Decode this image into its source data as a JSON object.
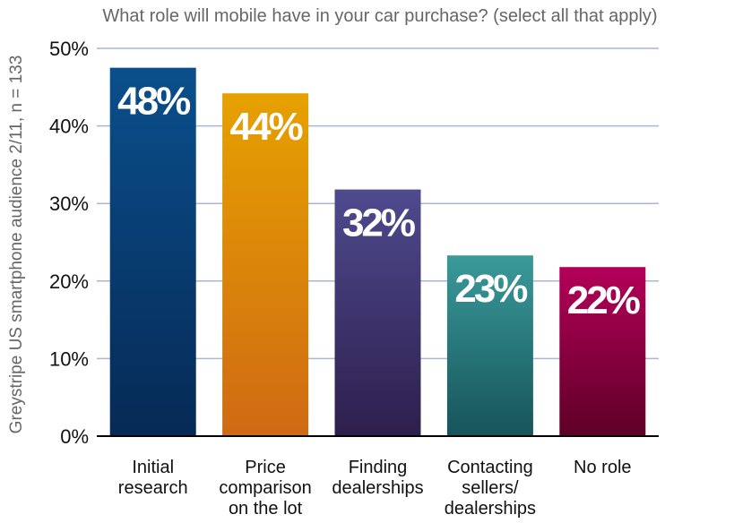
{
  "chart_data": {
    "type": "bar",
    "title": "What role will mobile have in your car purchase? (select all that apply)",
    "ylabel": "Greystripe US smartphone audience 2/11, n = 133",
    "xlabel": "",
    "ylim": [
      0,
      50
    ],
    "yticks": [
      "0%",
      "10%",
      "20%",
      "30%",
      "40%",
      "50%"
    ],
    "grid": true,
    "categories": [
      [
        "Initial",
        "research"
      ],
      [
        "Price",
        "comparison",
        "on the lot"
      ],
      [
        "Finding",
        "dealerships"
      ],
      [
        "Contacting",
        "sellers/",
        "dealerships"
      ],
      [
        "No role"
      ]
    ],
    "values": [
      47.5,
      44.2,
      31.8,
      23.3,
      21.8
    ],
    "data_labels": [
      "48%",
      "44%",
      "32%",
      "23%",
      "22%"
    ],
    "colors": [
      [
        "#0a4f8c",
        "#062a55"
      ],
      [
        "#e6a100",
        "#cf6a14"
      ],
      [
        "#4e4a8e",
        "#2e1f4c"
      ],
      [
        "#3a9a9a",
        "#16545a"
      ],
      [
        "#b30059",
        "#5e0026"
      ]
    ],
    "grid_color": "#a9b6d8"
  }
}
